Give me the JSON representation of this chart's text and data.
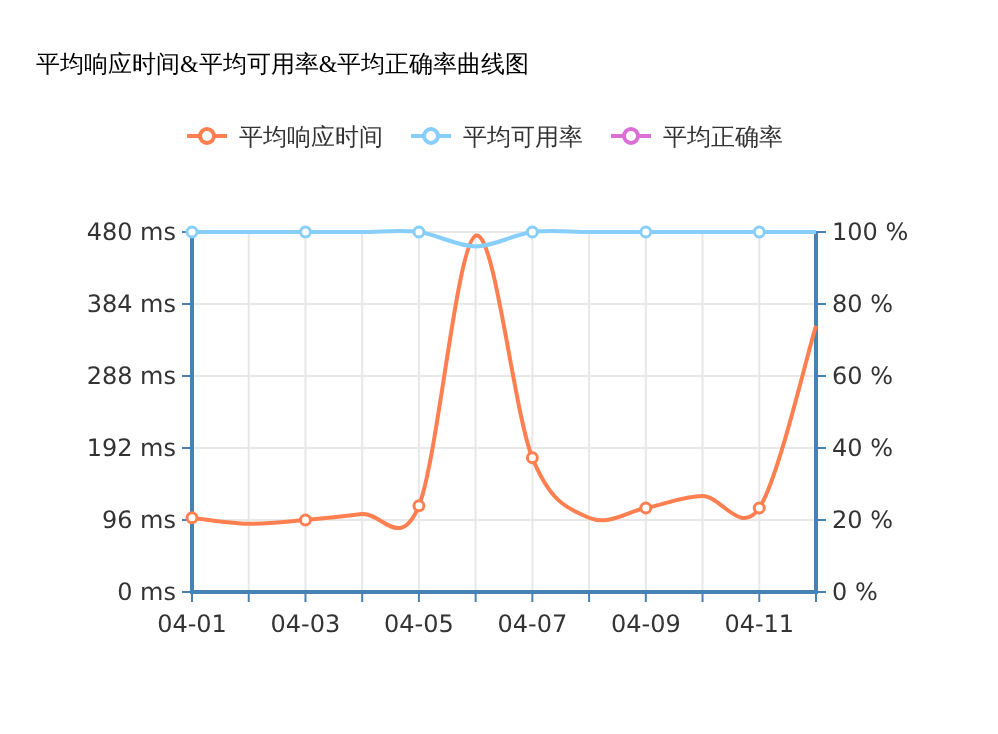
{
  "chart_data": {
    "type": "line",
    "title": "平均响应时间&平均可用率&平均正确率曲线图",
    "categories": [
      "04-01",
      null,
      "04-03",
      null,
      "04-05",
      null,
      "04-07",
      null,
      "04-09",
      null,
      "04-11",
      null
    ],
    "series": [
      {
        "name": "平均响应时间",
        "color": "#ff7f50",
        "values": [
          99,
          91,
          96,
          104,
          115,
          475,
          179,
          99,
          112,
          128,
          112,
          355
        ]
      },
      {
        "name": "平均可用率",
        "color": "#87cefa",
        "axis": "y2",
        "values": [
          100,
          100,
          100,
          100,
          100,
          96,
          100,
          100,
          100,
          100,
          100,
          100
        ]
      },
      {
        "name": "平均正确率",
        "color": "#da70d6",
        "axis": "y2",
        "values": [
          null,
          null,
          null,
          null,
          null,
          null,
          null,
          null,
          null,
          null,
          null,
          null
        ]
      }
    ],
    "ylim": [
      0,
      480
    ],
    "yticks": [
      {
        "value": 0,
        "label": "0 ms"
      },
      {
        "value": 96,
        "label": "96 ms"
      },
      {
        "value": 192,
        "label": "192 ms"
      },
      {
        "value": 288,
        "label": "288 ms"
      },
      {
        "value": 384,
        "label": "384 ms"
      },
      {
        "value": 480,
        "label": "480 ms"
      }
    ],
    "y2lim": [
      0,
      100
    ],
    "y2ticks": [
      {
        "value": 0,
        "label": "0 %"
      },
      {
        "value": 20,
        "label": "20 %"
      },
      {
        "value": 40,
        "label": "40 %"
      },
      {
        "value": 60,
        "label": "60 %"
      },
      {
        "value": 80,
        "label": "80 %"
      },
      {
        "value": 100,
        "label": "100 %"
      }
    ],
    "grid": true,
    "legend": "top",
    "marker": "circle",
    "line_style": "solid"
  }
}
